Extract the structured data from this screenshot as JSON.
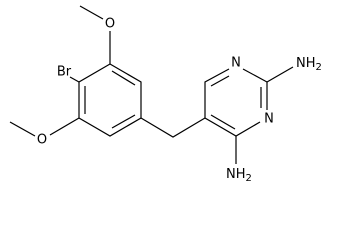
{
  "atoms": {
    "bromine": "Br",
    "oxygen_top": "O",
    "oxygen_bottom": "O",
    "nitrogen_1": "N",
    "nitrogen_3": "N",
    "amine_top": {
      "main": "NH",
      "sub": "2"
    },
    "amine_bottom": {
      "main": "NH",
      "sub": "2"
    }
  }
}
